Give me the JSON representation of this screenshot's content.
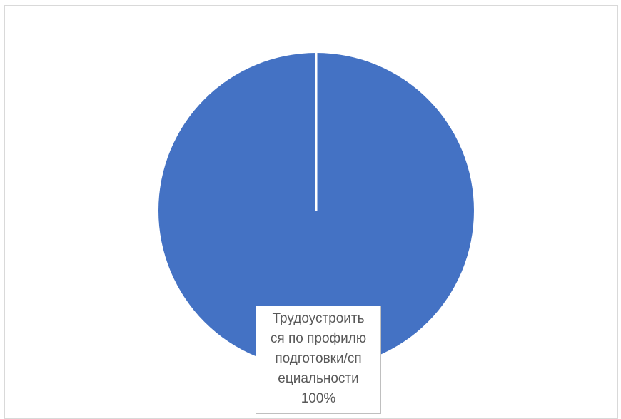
{
  "chart_data": {
    "type": "pie",
    "title": "",
    "slices": [
      {
        "label_lines": [
          "Трудоустроить",
          "ся по профилю",
          "подготовки/сп",
          "ециальности"
        ],
        "value": 100,
        "percent_text": "100%",
        "color": "#4472C4"
      }
    ],
    "legend": "none"
  },
  "colors": {
    "slice": "#4472C4",
    "separator": "#ffffff",
    "frame_border": "#d9d9d9",
    "label_text": "#595959"
  }
}
